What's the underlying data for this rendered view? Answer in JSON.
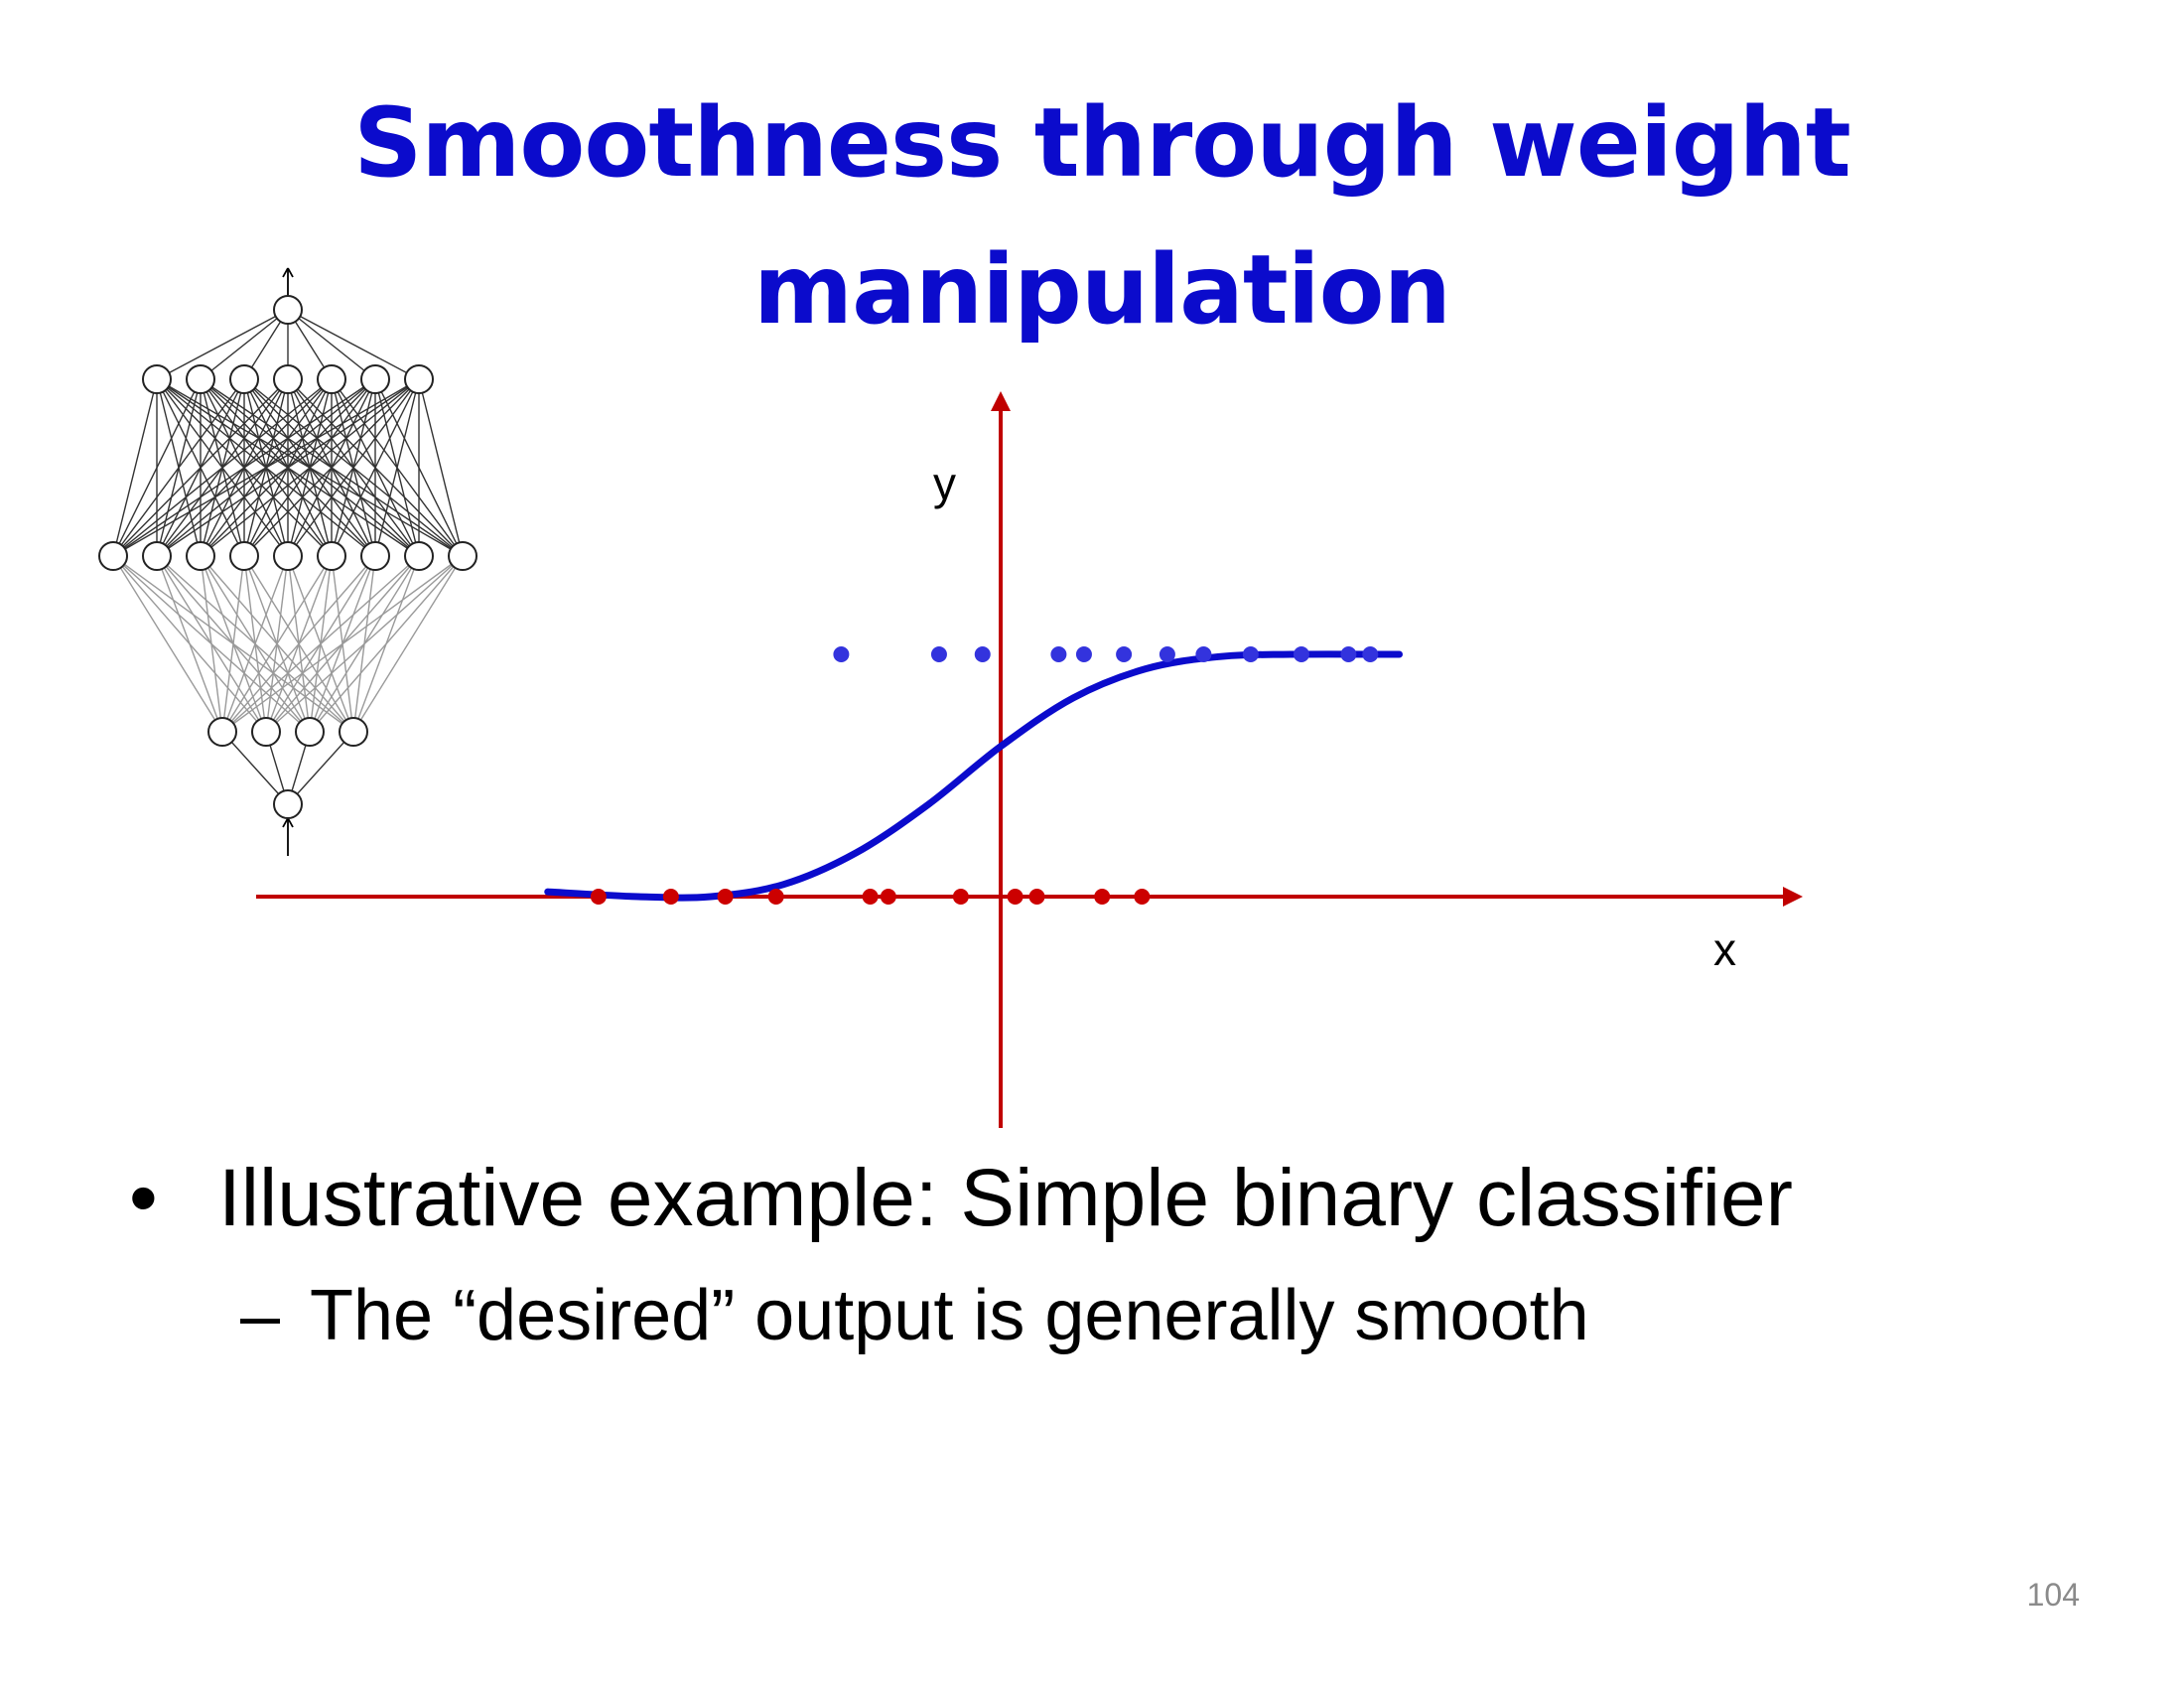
{
  "slide": {
    "title_lines": [
      "Smoothness through weight",
      "manipulation"
    ],
    "page_number": "104"
  },
  "bullets": [
    {
      "level": 1,
      "marker": "•",
      "text": "Illustrative example: Simple binary classifier"
    },
    {
      "level": 2,
      "marker": "–",
      "text": "The “desired” output is generally smooth"
    }
  ],
  "diagram": {
    "icon": "neural-network-icon",
    "layers": [
      1,
      7,
      9,
      4,
      1
    ]
  },
  "chart_data": {
    "type": "scatter",
    "xlabel": "x",
    "ylabel": "y",
    "series": [
      {
        "class": "1",
        "color": "#3333dd",
        "x": [
          -4.4,
          -1.7,
          -0.5,
          1.6,
          2.3,
          3.4,
          4.6,
          5.6,
          6.9,
          8.3,
          9.6,
          10.2
        ],
        "y": [
          1,
          1,
          1,
          1,
          1,
          1,
          1,
          1,
          1,
          1,
          1,
          1
        ]
      },
      {
        "class": "0",
        "color": "#cc0000",
        "x": [
          -11.1,
          -9.1,
          -7.6,
          -6.2,
          -3.6,
          -3.1,
          -1.1,
          0.4,
          1.0,
          2.8,
          3.9
        ],
        "y": [
          0,
          0,
          0,
          0,
          0,
          0,
          0,
          0,
          0,
          0,
          0
        ]
      },
      {
        "class": "smooth-fit",
        "color": "#0b0bcc",
        "x": [
          -12.5,
          -10,
          -8,
          -6,
          -4,
          -2,
          0,
          2,
          4,
          6,
          8,
          11
        ],
        "y": [
          0.02,
          0.0,
          0.0,
          0.05,
          0.18,
          0.38,
          0.62,
          0.82,
          0.94,
          0.99,
          1.0,
          1.0
        ]
      }
    ],
    "axis_color": "#c00000",
    "grid": false
  }
}
